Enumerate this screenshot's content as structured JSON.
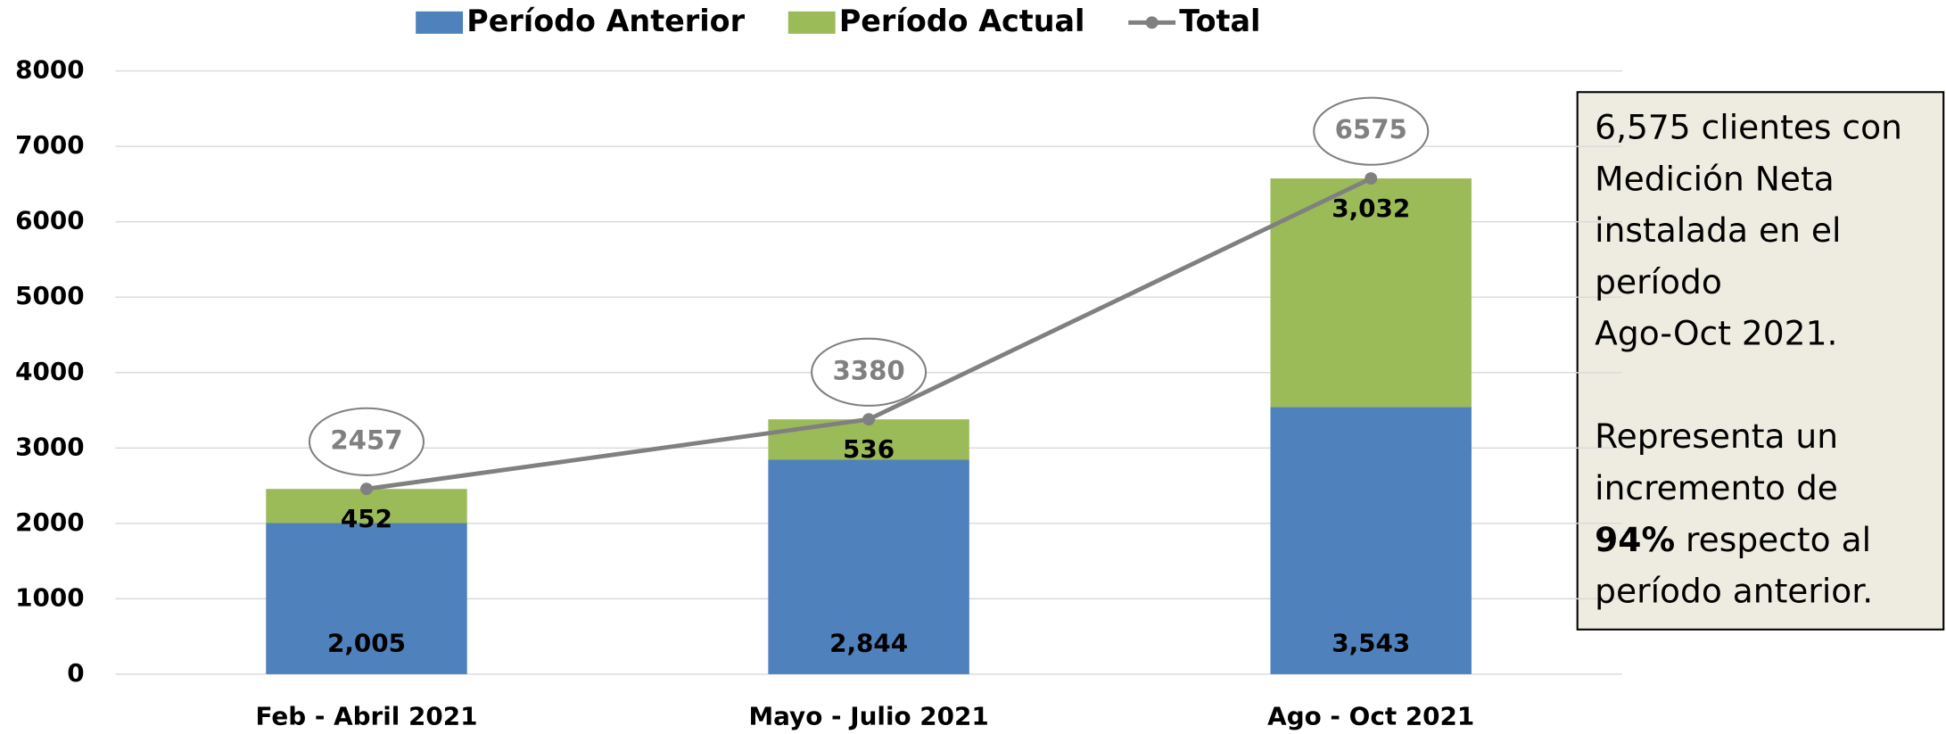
{
  "chart_data": {
    "type": "bar",
    "stacked": true,
    "categories": [
      "Feb - Abril 2021",
      "Mayo - Julio 2021",
      "Ago - Oct 2021"
    ],
    "series": [
      {
        "name": "Período Anterior",
        "color": "#4f81bd",
        "values": [
          2005,
          2844,
          3543
        ],
        "value_labels": [
          "2,005",
          "2,844",
          "3,543"
        ]
      },
      {
        "name": "Período Actual",
        "color": "#9bbb59",
        "values": [
          452,
          536,
          3032
        ],
        "value_labels": [
          "452",
          "536",
          "3,032"
        ]
      },
      {
        "name": "Total",
        "type": "line",
        "color": "#808080",
        "values": [
          2457,
          3380,
          6575
        ]
      }
    ],
    "ylim": [
      0,
      8000
    ],
    "yticks": [
      0,
      1000,
      2000,
      3000,
      4000,
      5000,
      6000,
      7000,
      8000
    ],
    "grid": true,
    "legend": "top",
    "annotation": {
      "paragraphs": [
        [
          "6,575 clientes con",
          "Medición Neta",
          "instalada en el",
          "período",
          "Ago-Oct 2021."
        ],
        [
          "Representa un",
          "incremento de",
          [
            {
              "text": "94%",
              "bold": true
            },
            {
              "text": " respecto al"
            }
          ],
          "período anterior."
        ]
      ]
    }
  }
}
